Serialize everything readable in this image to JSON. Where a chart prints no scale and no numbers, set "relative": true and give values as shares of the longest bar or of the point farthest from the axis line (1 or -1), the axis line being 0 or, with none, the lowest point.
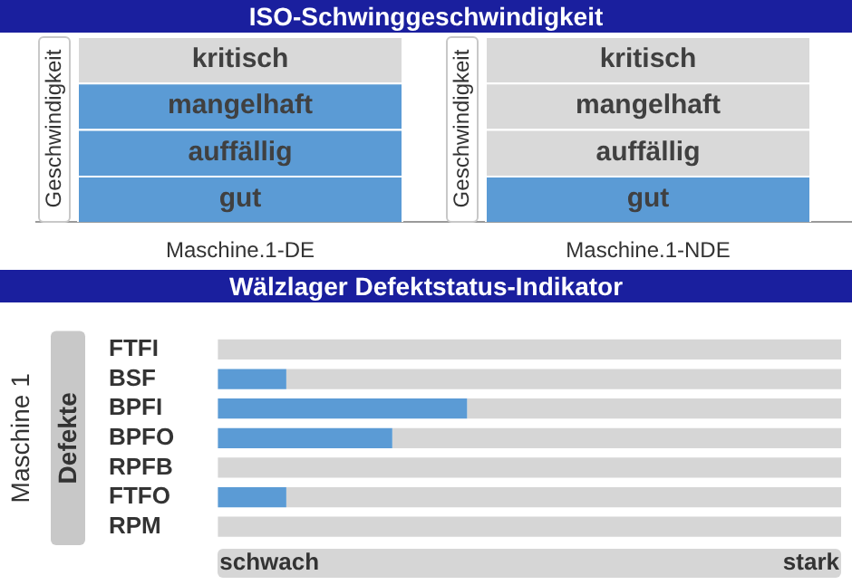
{
  "chart_data": [
    {
      "type": "bar",
      "title": "ISO-Schwinggeschwindigkeit",
      "ylabel": "Geschwindigkeit",
      "categories": [
        "Maschine.1-DE",
        "Maschine.1-NDE"
      ],
      "stacked": true,
      "relative": true,
      "series": [
        {
          "name": "gut",
          "colors": [
            "#5b9bd5",
            "#5b9bd5"
          ],
          "values": [
            0.25,
            0.25
          ]
        },
        {
          "name": "auffällig",
          "colors": [
            "#5b9bd5",
            "#d9d9d9"
          ],
          "values": [
            0.25,
            0.25
          ]
        },
        {
          "name": "mangelhaft",
          "colors": [
            "#5b9bd5",
            "#d9d9d9"
          ],
          "values": [
            0.25,
            0.25
          ]
        },
        {
          "name": "kritisch",
          "colors": [
            "#d9d9d9",
            "#d9d9d9"
          ],
          "values": [
            0.25,
            0.25
          ]
        }
      ]
    },
    {
      "type": "bar",
      "orientation": "horizontal",
      "stacked": true,
      "relative": true,
      "title": "Wälzlager Defektstatus-Indikator",
      "ylabel": "Maschine 1",
      "annotations": [
        "Defekte",
        "schwach",
        "stark"
      ],
      "categories": [
        "FTFI",
        "BSF",
        "BPFI",
        "BPFO",
        "RPFB",
        "FTFO",
        "RPM"
      ],
      "series": [
        {
          "color": "#5b9bd5",
          "values": [
            0,
            0.11,
            0.4,
            0.28,
            0,
            0.11,
            0
          ]
        },
        {
          "color": "#d6d6d6",
          "values": [
            1,
            0.89,
            0.6,
            0.72,
            1,
            0.89,
            1
          ]
        }
      ]
    }
  ]
}
